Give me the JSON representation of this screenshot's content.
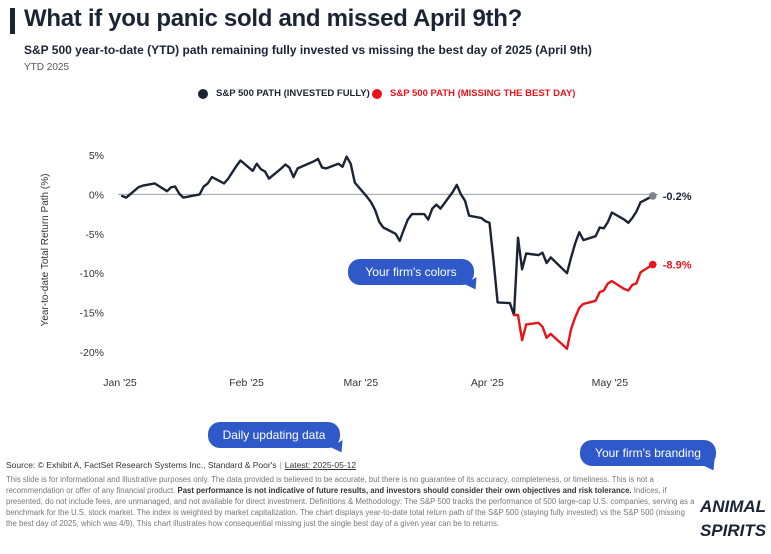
{
  "header": {
    "title": "What if you panic sold and missed April 9th?",
    "subtitle": "S&P 500 year-to-date (YTD) path remaining fully invested vs missing the best day of 2025 (April 9th)",
    "period": "YTD 2025"
  },
  "legend": {
    "invested": "S&P 500 PATH (INVESTED FULLY)",
    "missing": "S&P 500 PATH (MISSING THE BEST DAY)"
  },
  "colors": {
    "invested": "#1b2433",
    "missing": "#e8141b",
    "accent_blue": "#2f59c9",
    "axis": "#555555"
  },
  "callouts": {
    "colors": "Your firm's colors",
    "data": "Daily updating data",
    "branding": "Your firm's branding"
  },
  "footer": {
    "source": "Source: © Exhibit A, FactSet Research Systems Inc., Standard & Poor's",
    "separator": "|",
    "latest": "Latest: 2025-05-12",
    "line1": "This slide is for informational and illustrative purposes only. The data provided is believed to be accurate, but there is no guarantee of its accuracy, completeness, or timeliness.",
    "line2a": "This is not a recommendation or offer of any financial product.",
    "line2b": "Past performance is not indicative of future results, and investors should consider their own objectives and risk",
    "line3a": "tolerance.",
    "line3b": "Indices, if presented, do not include fees, are unmanaged, and not available for direct investment. Definitions & Methodology: The S&P 500 tracks the performance of 500 large-cap U.S. companies, serving as a benchmark for the U.S. stock market. The index is weighted by market capitalization. The chart displays year-to-date total return path of the S&P 500 (staying fully invested) vs the S&P 500 (missing the best day of 2025, which was 4/9). This chart illustrates how consequential missing just the single best day of a given year can be to returns."
  },
  "logo": {
    "line1": "ANIMAL",
    "line2": "SPIRITS"
  },
  "chart_data": {
    "type": "line",
    "ylabel": "Year-to-date Total Return Path (%)",
    "xlabel": "",
    "ylim": [
      -21,
      6
    ],
    "yticks": [
      5,
      0,
      -5,
      -10,
      -15,
      -20
    ],
    "ytick_labels": [
      "5%",
      "0%",
      "-5%",
      "-10%",
      "-15%",
      "-20%"
    ],
    "xlim": [
      "2025-01-01",
      "2025-05-15"
    ],
    "xticks": [
      "2025-01-01",
      "2025-02-01",
      "2025-03-01",
      "2025-04-01",
      "2025-05-01"
    ],
    "xtick_labels": [
      "Jan '25",
      "Feb '25",
      "Mar '25",
      "Apr '25",
      "May '25"
    ],
    "zero_line": true,
    "grid": false,
    "legend_position": "top",
    "series": [
      {
        "name": "S&P 500 PATH (INVESTED FULLY)",
        "end_label": "-0.2%",
        "x": [
          "2025-01-02",
          "2025-01-03",
          "2025-01-06",
          "2025-01-07",
          "2025-01-08",
          "2025-01-10",
          "2025-01-13",
          "2025-01-14",
          "2025-01-15",
          "2025-01-16",
          "2025-01-17",
          "2025-01-21",
          "2025-01-22",
          "2025-01-23",
          "2025-01-24",
          "2025-01-27",
          "2025-01-28",
          "2025-01-29",
          "2025-01-30",
          "2025-01-31",
          "2025-02-03",
          "2025-02-04",
          "2025-02-05",
          "2025-02-06",
          "2025-02-07",
          "2025-02-10",
          "2025-02-11",
          "2025-02-12",
          "2025-02-13",
          "2025-02-14",
          "2025-02-18",
          "2025-02-19",
          "2025-02-20",
          "2025-02-21",
          "2025-02-24",
          "2025-02-25",
          "2025-02-26",
          "2025-02-27",
          "2025-02-28",
          "2025-03-03",
          "2025-03-04",
          "2025-03-05",
          "2025-03-06",
          "2025-03-07",
          "2025-03-10",
          "2025-03-11",
          "2025-03-12",
          "2025-03-13",
          "2025-03-14",
          "2025-03-17",
          "2025-03-18",
          "2025-03-19",
          "2025-03-20",
          "2025-03-21",
          "2025-03-24",
          "2025-03-25",
          "2025-03-26",
          "2025-03-27",
          "2025-03-28",
          "2025-03-31",
          "2025-04-01",
          "2025-04-02",
          "2025-04-03",
          "2025-04-04",
          "2025-04-07",
          "2025-04-08",
          "2025-04-09",
          "2025-04-10",
          "2025-04-11",
          "2025-04-14",
          "2025-04-15",
          "2025-04-16",
          "2025-04-17",
          "2025-04-21",
          "2025-04-22",
          "2025-04-23",
          "2025-04-24",
          "2025-04-25",
          "2025-04-28",
          "2025-04-29",
          "2025-04-30",
          "2025-05-01",
          "2025-05-02",
          "2025-05-05",
          "2025-05-06",
          "2025-05-07",
          "2025-05-08",
          "2025-05-09",
          "2025-05-12"
        ],
        "values": [
          -0.2,
          -0.4,
          0.9,
          1.1,
          1.2,
          1.4,
          0.4,
          0.9,
          1.0,
          0.1,
          -0.4,
          0.0,
          1.0,
          1.4,
          2.2,
          1.4,
          2.0,
          2.8,
          3.6,
          4.3,
          3.0,
          3.9,
          3.2,
          2.9,
          2.0,
          3.3,
          3.8,
          3.4,
          2.2,
          3.3,
          4.2,
          4.5,
          3.4,
          3.3,
          3.9,
          3.5,
          4.8,
          3.9,
          1.5,
          -0.3,
          -1.0,
          -2.0,
          -3.5,
          -4.2,
          -5.0,
          -5.9,
          -4.5,
          -3.2,
          -2.5,
          -2.5,
          -3.2,
          -1.8,
          -1.3,
          -1.8,
          0.3,
          1.2,
          0.0,
          -0.8,
          -2.7,
          -3.0,
          -3.4,
          -3.6,
          -8.5,
          -13.7,
          -13.8,
          -15.3,
          -5.5,
          -9.5,
          -7.5,
          -7.7,
          -7.4,
          -8.7,
          -8.0,
          -10.0,
          -8.0,
          -6.2,
          -4.8,
          -5.8,
          -5.3,
          -4.2,
          -4.3,
          -3.5,
          -2.3,
          -3.2,
          -3.6,
          -3.0,
          -2.2,
          -1.0,
          -0.2
        ]
      },
      {
        "name": "S&P 500 PATH (MISSING THE BEST DAY)",
        "end_label": "-8.9%",
        "x": [
          "2025-04-08",
          "2025-04-09",
          "2025-04-10",
          "2025-04-11",
          "2025-04-14",
          "2025-04-15",
          "2025-04-16",
          "2025-04-17",
          "2025-04-21",
          "2025-04-22",
          "2025-04-23",
          "2025-04-24",
          "2025-04-25",
          "2025-04-28",
          "2025-04-29",
          "2025-04-30",
          "2025-05-01",
          "2025-05-02",
          "2025-05-05",
          "2025-05-06",
          "2025-05-07",
          "2025-05-08",
          "2025-05-09",
          "2025-05-12"
        ],
        "values": [
          -15.3,
          -15.3,
          -18.5,
          -16.5,
          -16.3,
          -16.8,
          -18.2,
          -17.7,
          -19.6,
          -17.1,
          -15.6,
          -14.4,
          -13.9,
          -13.5,
          -12.4,
          -12.2,
          -11.3,
          -11.0,
          -12.0,
          -12.2,
          -11.5,
          -11.3,
          -9.9,
          -8.9
        ]
      }
    ]
  }
}
